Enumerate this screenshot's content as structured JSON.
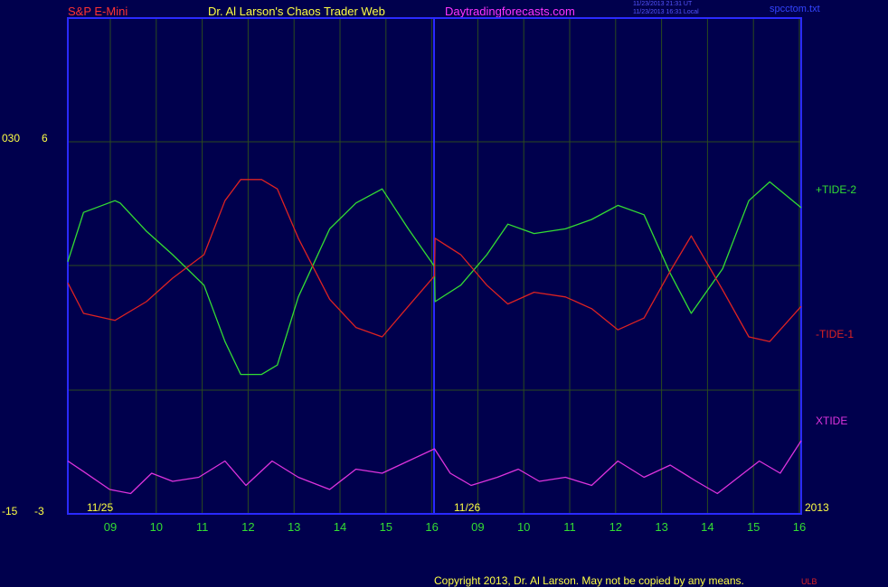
{
  "header": {
    "symbol": "S&P E-Mini",
    "site": "Dr. Al Larson's Chaos Trader Web",
    "url": "Daytradingforecasts.com",
    "stamp_ut": "11/23/2013 21:31 UT",
    "stamp_local": "11/23/2013 16:31 Local",
    "file": "spcctom.txt"
  },
  "footer": {
    "copyright": "Copyright 2013, Dr. Al Larson. May not be copied by any means.",
    "badge": "ULB"
  },
  "colors": {
    "background": "#00004d",
    "frame": "#2a2aff",
    "grid": "#2b4a1f",
    "tide2": "#33dd33",
    "tide1": "#dd2222",
    "xtide": "#dd33dd",
    "axis_text": "#ffff44",
    "header_red": "#ff3333",
    "header_yellow": "#ffff44",
    "header_magenta": "#ff33ff"
  },
  "chart_data": {
    "type": "line",
    "y_labels": {
      "upper_left": "030",
      "upper_right": "6",
      "lower_left": "-15",
      "lower_right": "-3"
    },
    "date_labels": [
      "11/25",
      "11/26"
    ],
    "year_label": "2013",
    "x_ticks": [
      "09",
      "10",
      "11",
      "12",
      "13",
      "14",
      "15",
      "16",
      "09",
      "10",
      "11",
      "12",
      "13",
      "14",
      "15",
      "16"
    ],
    "series": [
      {
        "name": "+TIDE-2",
        "color": "#33dd33",
        "points": [
          [
            0,
            0.52
          ],
          [
            0.3,
            0.73
          ],
          [
            0.9,
            0.78
          ],
          [
            1.0,
            0.77
          ],
          [
            1.5,
            0.65
          ],
          [
            2.0,
            0.55
          ],
          [
            2.6,
            0.42
          ],
          [
            3.0,
            0.18
          ],
          [
            3.3,
            0.04
          ],
          [
            3.7,
            0.04
          ],
          [
            4.0,
            0.08
          ],
          [
            4.4,
            0.37
          ],
          [
            5.0,
            0.66
          ],
          [
            5.5,
            0.77
          ],
          [
            6.0,
            0.83
          ],
          [
            6.5,
            0.66
          ],
          [
            7.0,
            0.5
          ],
          [
            7.01,
            0.35
          ],
          [
            7.5,
            0.42
          ],
          [
            8.0,
            0.55
          ],
          [
            8.4,
            0.68
          ],
          [
            8.9,
            0.64
          ],
          [
            9.5,
            0.66
          ],
          [
            10.0,
            0.7
          ],
          [
            10.5,
            0.76
          ],
          [
            11.0,
            0.72
          ],
          [
            11.5,
            0.47
          ],
          [
            11.9,
            0.3
          ],
          [
            12.5,
            0.49
          ],
          [
            13.0,
            0.78
          ],
          [
            13.4,
            0.86
          ],
          [
            14.0,
            0.75
          ]
        ]
      },
      {
        "name": "-TIDE-1",
        "color": "#dd2222",
        "points": [
          [
            0,
            0.43
          ],
          [
            0.3,
            0.3
          ],
          [
            0.9,
            0.27
          ],
          [
            1.5,
            0.35
          ],
          [
            2.0,
            0.45
          ],
          [
            2.6,
            0.55
          ],
          [
            3.0,
            0.78
          ],
          [
            3.3,
            0.87
          ],
          [
            3.7,
            0.87
          ],
          [
            4.0,
            0.83
          ],
          [
            4.4,
            0.62
          ],
          [
            5.0,
            0.36
          ],
          [
            5.5,
            0.24
          ],
          [
            6.0,
            0.2
          ],
          [
            6.5,
            0.33
          ],
          [
            7.0,
            0.46
          ],
          [
            7.01,
            0.62
          ],
          [
            7.5,
            0.55
          ],
          [
            8.0,
            0.42
          ],
          [
            8.4,
            0.34
          ],
          [
            8.9,
            0.39
          ],
          [
            9.5,
            0.37
          ],
          [
            10.0,
            0.32
          ],
          [
            10.5,
            0.23
          ],
          [
            11.0,
            0.28
          ],
          [
            11.5,
            0.48
          ],
          [
            11.9,
            0.63
          ],
          [
            12.5,
            0.4
          ],
          [
            13.0,
            0.2
          ],
          [
            13.4,
            0.18
          ],
          [
            14.0,
            0.33
          ]
        ]
      },
      {
        "name": "XTIDE",
        "color": "#dd33dd",
        "points": [
          [
            0,
            0.55
          ],
          [
            0.3,
            0.42
          ],
          [
            0.8,
            0.2
          ],
          [
            1.2,
            0.15
          ],
          [
            1.6,
            0.4
          ],
          [
            2.0,
            0.3
          ],
          [
            2.5,
            0.35
          ],
          [
            3.0,
            0.55
          ],
          [
            3.4,
            0.25
          ],
          [
            3.9,
            0.55
          ],
          [
            4.4,
            0.35
          ],
          [
            5.0,
            0.2
          ],
          [
            5.5,
            0.45
          ],
          [
            6.0,
            0.4
          ],
          [
            6.5,
            0.55
          ],
          [
            7.0,
            0.7
          ],
          [
            7.3,
            0.4
          ],
          [
            7.7,
            0.25
          ],
          [
            8.2,
            0.35
          ],
          [
            8.6,
            0.45
          ],
          [
            9.0,
            0.3
          ],
          [
            9.5,
            0.35
          ],
          [
            10.0,
            0.25
          ],
          [
            10.5,
            0.55
          ],
          [
            11.0,
            0.35
          ],
          [
            11.5,
            0.5
          ],
          [
            12.0,
            0.3
          ],
          [
            12.4,
            0.15
          ],
          [
            12.8,
            0.35
          ],
          [
            13.2,
            0.55
          ],
          [
            13.6,
            0.4
          ],
          [
            14.0,
            0.8
          ]
        ]
      }
    ]
  }
}
